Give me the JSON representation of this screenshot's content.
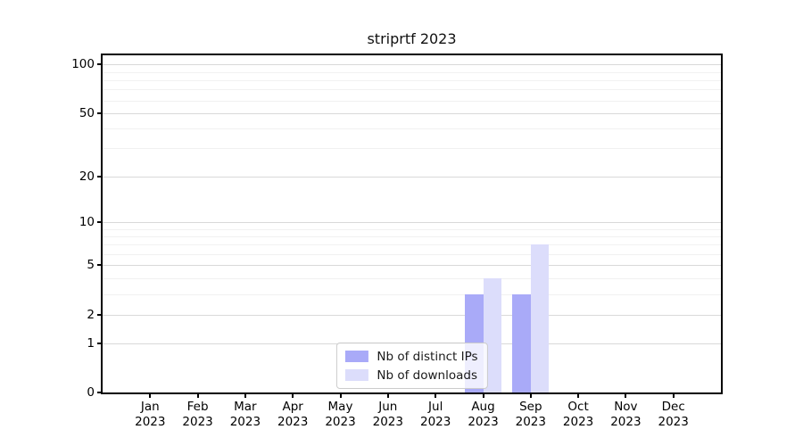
{
  "title": "striprtf 2023",
  "chart_data": {
    "type": "bar",
    "title": "striprtf 2023",
    "y_scale": "log10(1+y)",
    "grid": true,
    "categories": [
      {
        "month": "Jan",
        "year": "2023"
      },
      {
        "month": "Feb",
        "year": "2023"
      },
      {
        "month": "Mar",
        "year": "2023"
      },
      {
        "month": "Apr",
        "year": "2023"
      },
      {
        "month": "May",
        "year": "2023"
      },
      {
        "month": "Jun",
        "year": "2023"
      },
      {
        "month": "Jul",
        "year": "2023"
      },
      {
        "month": "Aug",
        "year": "2023"
      },
      {
        "month": "Sep",
        "year": "2023"
      },
      {
        "month": "Oct",
        "year": "2023"
      },
      {
        "month": "Nov",
        "year": "2023"
      },
      {
        "month": "Dec",
        "year": "2023"
      }
    ],
    "series": [
      {
        "name": "Nb of distinct IPs",
        "color": "#a9aaf8",
        "values": [
          0,
          0,
          0,
          0,
          0,
          0,
          0,
          3,
          3,
          0,
          0,
          0
        ]
      },
      {
        "name": "Nb of downloads",
        "color": "#dcddfb",
        "values": [
          0,
          0,
          0,
          0,
          0,
          0,
          0,
          4,
          7,
          0,
          0,
          0
        ]
      }
    ],
    "y_axis": {
      "major_ticks": [
        0,
        1,
        2,
        5,
        10,
        20,
        50,
        100
      ],
      "minor_ticks": [
        3,
        4,
        6,
        7,
        8,
        9,
        30,
        40,
        60,
        70,
        80,
        90
      ],
      "ylim": [
        0,
        114
      ]
    },
    "legend": {
      "position": "lower center",
      "items": [
        "Nb of distinct IPs",
        "Nb of downloads"
      ]
    }
  },
  "colors": {
    "distinct_ips": "#a9aaf8",
    "downloads": "#dcddfb",
    "grid_major": "#d9d9d9",
    "grid_minor": "#f1f1f1",
    "spine": "#000000"
  }
}
